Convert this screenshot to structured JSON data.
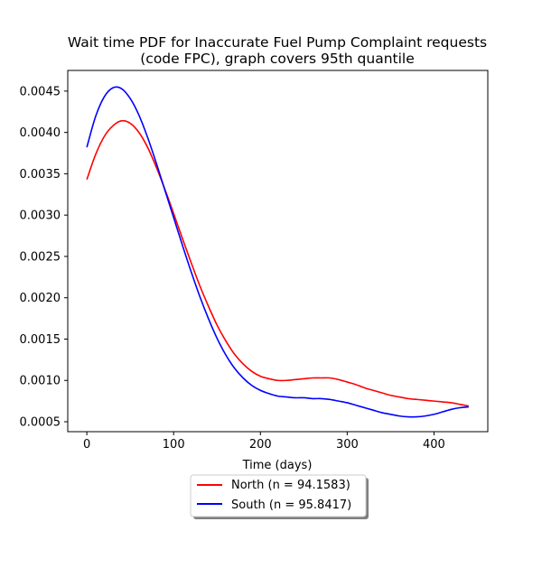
{
  "chart_data": {
    "type": "line",
    "title": "Wait time PDF for Inaccurate Fuel Pump Complaint  requests",
    "subtitle": "(code FPC), graph covers 95th quantile",
    "xlabel": "Time (days)",
    "ylabel": "",
    "xlim": [
      -22,
      462
    ],
    "ylim": [
      0.00038,
      0.00475
    ],
    "xticks": [
      0,
      100,
      200,
      300,
      400
    ],
    "yticks": [
      0.0005,
      0.001,
      0.0015,
      0.002,
      0.0025,
      0.003,
      0.0035,
      0.004,
      0.0045
    ],
    "ytick_labels": [
      "0.0005",
      "0.0010",
      "0.0015",
      "0.0020",
      "0.0025",
      "0.0030",
      "0.0035",
      "0.0040",
      "0.0045"
    ],
    "xtick_labels": [
      "0",
      "100",
      "200",
      "300",
      "400"
    ],
    "grid": false,
    "legend_position": "bottom-center",
    "series": [
      {
        "name": "North (n = 94.1583)",
        "color": "#ff0000",
        "x": [
          0,
          10,
          20,
          30,
          40,
          50,
          60,
          70,
          80,
          90,
          100,
          110,
          120,
          130,
          140,
          150,
          160,
          170,
          180,
          190,
          200,
          210,
          220,
          230,
          240,
          250,
          260,
          270,
          280,
          290,
          300,
          310,
          320,
          330,
          340,
          350,
          360,
          370,
          380,
          390,
          400,
          410,
          420,
          430,
          440
        ],
        "y": [
          0.00343,
          0.00373,
          0.00395,
          0.00408,
          0.00414,
          0.00411,
          0.004,
          0.00382,
          0.00358,
          0.00331,
          0.00302,
          0.00272,
          0.00243,
          0.00215,
          0.0019,
          0.00167,
          0.00148,
          0.00132,
          0.0012,
          0.00111,
          0.00105,
          0.00102,
          0.001,
          0.001,
          0.00101,
          0.00102,
          0.00103,
          0.00103,
          0.00103,
          0.00101,
          0.00098,
          0.00095,
          0.00091,
          0.00088,
          0.00085,
          0.00082,
          0.0008,
          0.00078,
          0.00077,
          0.00076,
          0.00075,
          0.00074,
          0.00073,
          0.00071,
          0.00069
        ]
      },
      {
        "name": "South (n = 95.8417)",
        "color": "#0000ff",
        "x": [
          0,
          10,
          20,
          30,
          40,
          50,
          60,
          70,
          80,
          90,
          100,
          110,
          120,
          130,
          140,
          150,
          160,
          170,
          180,
          190,
          200,
          210,
          220,
          230,
          240,
          250,
          260,
          270,
          280,
          290,
          300,
          310,
          320,
          330,
          340,
          350,
          360,
          370,
          380,
          390,
          400,
          410,
          420,
          430,
          440
        ],
        "y": [
          0.00382,
          0.00419,
          0.00443,
          0.00454,
          0.00453,
          0.00441,
          0.00421,
          0.00394,
          0.00363,
          0.0033,
          0.00297,
          0.00264,
          0.00232,
          0.00202,
          0.00175,
          0.00151,
          0.00131,
          0.00115,
          0.00103,
          0.00094,
          0.00088,
          0.00084,
          0.00081,
          0.0008,
          0.00079,
          0.00079,
          0.00078,
          0.00078,
          0.00077,
          0.00075,
          0.00073,
          0.0007,
          0.00067,
          0.00064,
          0.00061,
          0.00059,
          0.00057,
          0.00056,
          0.00056,
          0.00057,
          0.00059,
          0.00062,
          0.00065,
          0.00067,
          0.00068
        ]
      }
    ]
  }
}
